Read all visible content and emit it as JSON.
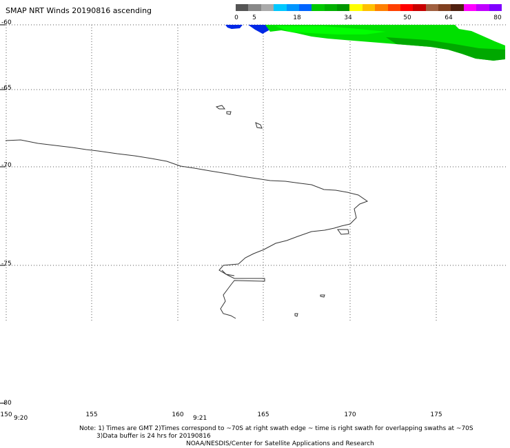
{
  "title": "SMAP NRT Winds 20190816 ascending",
  "colorbar": {
    "labels": [
      "0",
      "5",
      "18",
      "34",
      "50",
      "64",
      "80"
    ],
    "colors": [
      "#555555",
      "#888888",
      "#aaaaaa",
      "#00c8ff",
      "#0096ff",
      "#0064ff",
      "#00c800",
      "#00b000",
      "#009600",
      "#ffff00",
      "#ffc000",
      "#ff8000",
      "#ff4000",
      "#ff0000",
      "#c80000",
      "#a06040",
      "#804020",
      "#502010",
      "#ff00ff",
      "#c000ff",
      "#8000ff"
    ]
  },
  "latitudes": [
    "-60",
    "-65",
    "-70",
    "-75",
    "-80"
  ],
  "longitudes": [
    "150",
    "155",
    "160",
    "165",
    "170",
    "175"
  ],
  "times": [
    "9:20",
    "9:21"
  ],
  "notes": {
    "line1": "Note: 1) Times are GMT 2)Times correspond to ~70S at right swath edge ~ time is right swath for overlapping swaths at ~70S",
    "line2": "3)Data buffer is 24 hrs for 20190816",
    "line3": "NOAA/NESDIS/Center for Satellite Applications and Research"
  },
  "colors": {
    "wind_low": "#0028e6",
    "wind_mid": "#00e600",
    "wind_dark": "#00a000",
    "coast": "#333333",
    "grid": "#555555"
  }
}
